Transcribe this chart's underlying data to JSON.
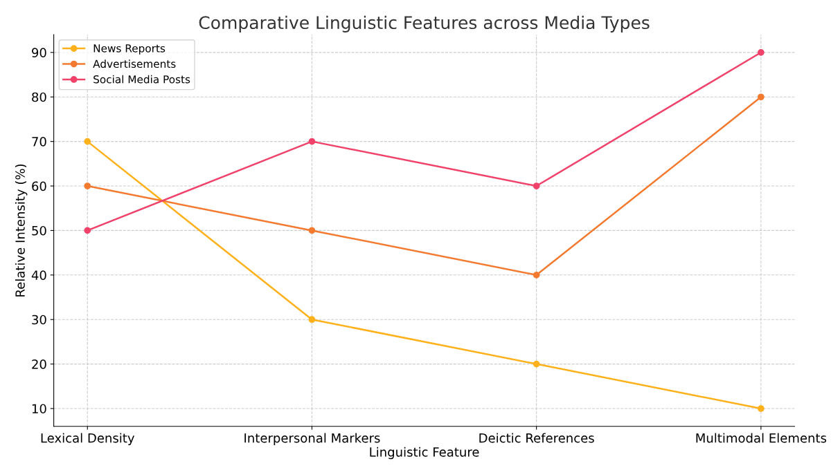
{
  "chart_data": {
    "type": "line",
    "title": "Comparative Linguistic Features across Media Types",
    "xlabel": "Linguistic Feature",
    "ylabel": "Relative Intensity (%)",
    "categories": [
      "Lexical Density",
      "Interpersonal Markers",
      "Deictic References",
      "Multimodal Elements"
    ],
    "series": [
      {
        "name": "News Reports",
        "color": "#ffb11b",
        "values": [
          70,
          30,
          20,
          10
        ]
      },
      {
        "name": "Advertisements",
        "color": "#f47a30",
        "values": [
          60,
          50,
          40,
          80
        ]
      },
      {
        "name": "Social Media Posts",
        "color": "#f0426a",
        "values": [
          50,
          70,
          60,
          90
        ]
      }
    ],
    "ylim": [
      6,
      94
    ],
    "yticks": [
      10,
      20,
      30,
      40,
      50,
      60,
      70,
      80,
      90
    ],
    "grid": true,
    "legend": "top left",
    "marker": "circle",
    "line_style": "solid"
  }
}
